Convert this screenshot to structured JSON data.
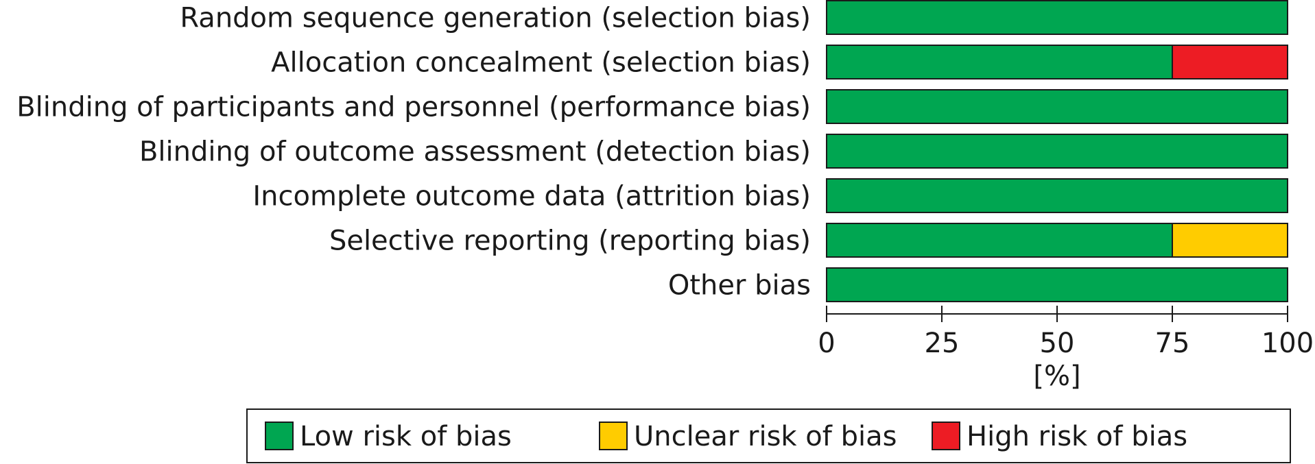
{
  "chart_data": {
    "type": "bar",
    "orientation": "horizontal",
    "stacked": true,
    "categories": [
      "Random sequence generation (selection bias)",
      "Allocation concealment (selection bias)",
      "Blinding of participants and personnel (performance bias)",
      "Blinding of outcome assessment (detection bias)",
      "Incomplete outcome data (attrition bias)",
      "Selective reporting (reporting bias)",
      "Other bias"
    ],
    "series": [
      {
        "name": "Low risk of bias",
        "color": "#00a651",
        "values": [
          100,
          75,
          100,
          100,
          100,
          75,
          100
        ]
      },
      {
        "name": "Unclear risk of bias",
        "color": "#ffcc00",
        "values": [
          0,
          0,
          0,
          0,
          0,
          25,
          0
        ]
      },
      {
        "name": "High risk of bias",
        "color": "#ed1c24",
        "values": [
          0,
          25,
          0,
          0,
          0,
          0,
          0
        ]
      }
    ],
    "xlabel": "[%]",
    "xlim": [
      0,
      100
    ],
    "xticks": [
      0,
      25,
      50,
      75,
      100
    ],
    "grid": false,
    "legend_position": "bottom"
  }
}
